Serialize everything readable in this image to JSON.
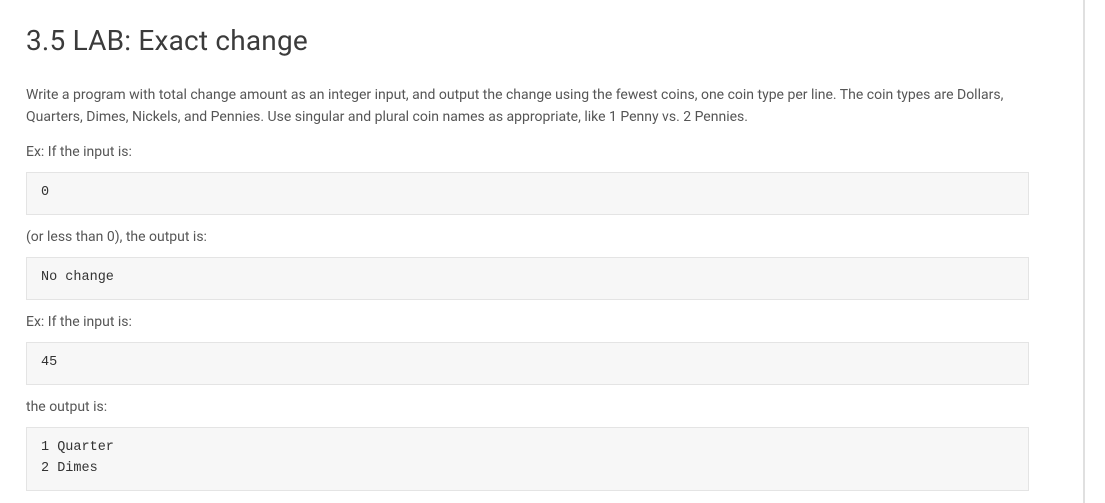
{
  "title": "3.5 LAB: Exact change",
  "description": "Write a program with total change amount as an integer input, and output the change using the fewest coins, one coin type per line. The coin types are Dollars, Quarters, Dimes, Nickels, and Pennies. Use singular and plural coin names as appropriate, like 1 Penny vs. 2 Pennies.",
  "label_ex1": "Ex: If the input is:",
  "code_ex1": "0",
  "label_or_less": "(or less than 0), the output is:",
  "code_nochange": "No change",
  "label_ex2": "Ex: If the input is:",
  "code_ex2": "45",
  "label_output_is": "the output is:",
  "code_output": "1 Quarter\n2 Dimes",
  "colors": {
    "background": "#ffffff",
    "title_text": "#3b3b3b",
    "body_text": "#555555",
    "code_bg": "#f7f7f7",
    "code_border": "#e4e4e4",
    "divider": "#e0e0e0"
  }
}
